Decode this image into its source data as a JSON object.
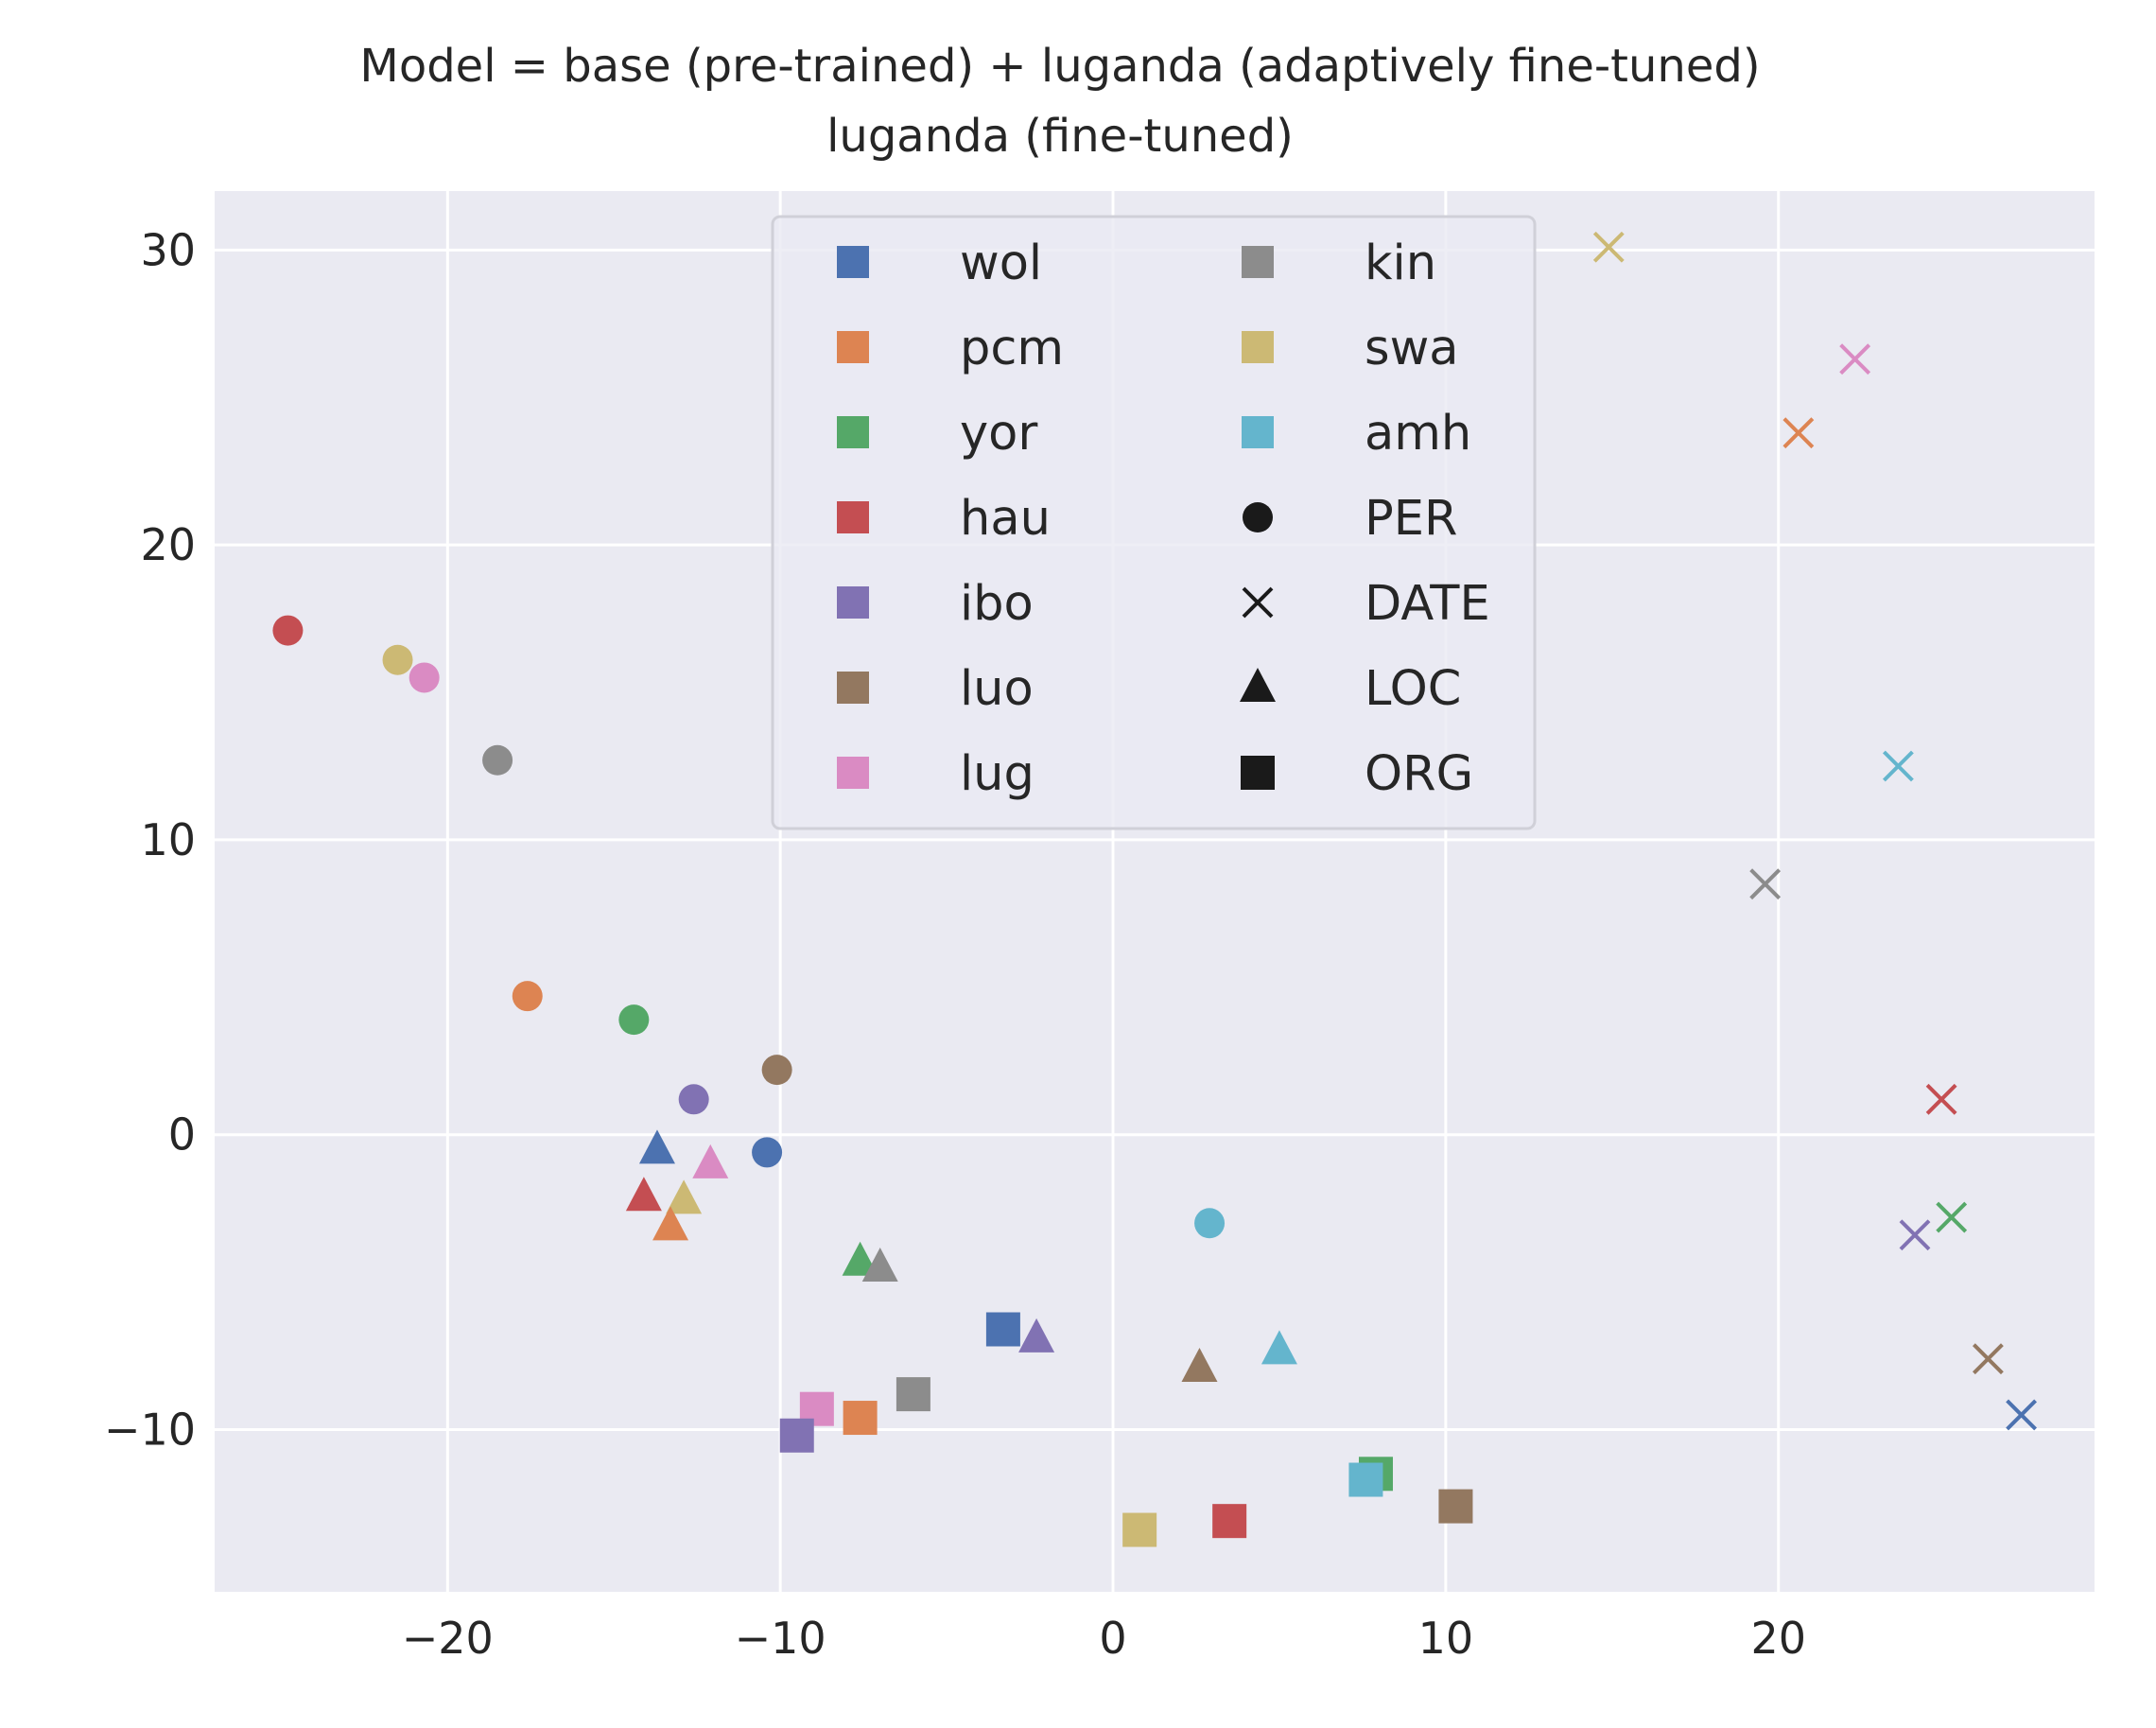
{
  "chart_data": {
    "type": "scatter",
    "title": "Model = base (pre-trained) + luganda (adaptively fine-tuned)",
    "subtitle": "luganda (fine-tuned)",
    "xlabel": "",
    "ylabel": "",
    "xlim": [
      -27,
      29.5
    ],
    "ylim": [
      -15.5,
      32
    ],
    "xticks": [
      -20,
      -10,
      0,
      10,
      20
    ],
    "yticks": [
      -10,
      0,
      10,
      20,
      30
    ],
    "grid": true,
    "legend_position": "top-center",
    "colors": {
      "wol": "#4c72b0",
      "pcm": "#dd8452",
      "yor": "#55a868",
      "hau": "#c44e52",
      "ibo": "#8172b3",
      "luo": "#937860",
      "lug": "#da8bc3",
      "kin": "#8c8c8c",
      "swa": "#ccb974",
      "amh": "#64b5cd"
    },
    "legend": [
      {
        "label": "wol",
        "kind": "lang",
        "key": "wol"
      },
      {
        "label": "pcm",
        "kind": "lang",
        "key": "pcm"
      },
      {
        "label": "yor",
        "kind": "lang",
        "key": "yor"
      },
      {
        "label": "hau",
        "kind": "lang",
        "key": "hau"
      },
      {
        "label": "ibo",
        "kind": "lang",
        "key": "ibo"
      },
      {
        "label": "luo",
        "kind": "lang",
        "key": "luo"
      },
      {
        "label": "lug",
        "kind": "lang",
        "key": "lug"
      },
      {
        "label": "kin",
        "kind": "lang",
        "key": "kin"
      },
      {
        "label": "swa",
        "kind": "lang",
        "key": "swa"
      },
      {
        "label": "amh",
        "kind": "lang",
        "key": "amh"
      },
      {
        "label": "PER",
        "kind": "marker",
        "key": "circle"
      },
      {
        "label": "DATE",
        "kind": "marker",
        "key": "x"
      },
      {
        "label": "LOC",
        "kind": "marker",
        "key": "triangle"
      },
      {
        "label": "ORG",
        "kind": "marker",
        "key": "square"
      }
    ],
    "points": [
      {
        "lang": "hau",
        "ent": "PER",
        "x": -24.8,
        "y": 17.1
      },
      {
        "lang": "swa",
        "ent": "PER",
        "x": -21.5,
        "y": 16.1
      },
      {
        "lang": "lug",
        "ent": "PER",
        "x": -20.7,
        "y": 15.5
      },
      {
        "lang": "kin",
        "ent": "PER",
        "x": -18.5,
        "y": 12.7
      },
      {
        "lang": "pcm",
        "ent": "PER",
        "x": -17.6,
        "y": 4.7
      },
      {
        "lang": "yor",
        "ent": "PER",
        "x": -14.4,
        "y": 3.9
      },
      {
        "lang": "ibo",
        "ent": "PER",
        "x": -12.6,
        "y": 1.2
      },
      {
        "lang": "luo",
        "ent": "PER",
        "x": -10.1,
        "y": 2.2
      },
      {
        "lang": "wol",
        "ent": "PER",
        "x": -10.4,
        "y": -0.6
      },
      {
        "lang": "amh",
        "ent": "PER",
        "x": 2.9,
        "y": -3.0
      },
      {
        "lang": "swa",
        "ent": "DATE",
        "x": 14.9,
        "y": 30.1
      },
      {
        "lang": "lug",
        "ent": "DATE",
        "x": 22.3,
        "y": 26.3
      },
      {
        "lang": "pcm",
        "ent": "DATE",
        "x": 20.6,
        "y": 23.8
      },
      {
        "lang": "amh",
        "ent": "DATE",
        "x": 23.6,
        "y": 12.5
      },
      {
        "lang": "kin",
        "ent": "DATE",
        "x": 19.6,
        "y": 8.5
      },
      {
        "lang": "hau",
        "ent": "DATE",
        "x": 24.9,
        "y": 1.2
      },
      {
        "lang": "yor",
        "ent": "DATE",
        "x": 25.2,
        "y": -2.8
      },
      {
        "lang": "ibo",
        "ent": "DATE",
        "x": 24.1,
        "y": -3.4
      },
      {
        "lang": "luo",
        "ent": "DATE",
        "x": 26.3,
        "y": -7.6
      },
      {
        "lang": "wol",
        "ent": "DATE",
        "x": 27.3,
        "y": -9.5
      },
      {
        "lang": "wol",
        "ent": "LOC",
        "x": -13.7,
        "y": -0.5
      },
      {
        "lang": "lug",
        "ent": "LOC",
        "x": -12.1,
        "y": -1.0
      },
      {
        "lang": "hau",
        "ent": "LOC",
        "x": -14.1,
        "y": -2.1
      },
      {
        "lang": "swa",
        "ent": "LOC",
        "x": -12.9,
        "y": -2.2
      },
      {
        "lang": "pcm",
        "ent": "LOC",
        "x": -13.3,
        "y": -3.1
      },
      {
        "lang": "yor",
        "ent": "LOC",
        "x": -7.6,
        "y": -4.3
      },
      {
        "lang": "kin",
        "ent": "LOC",
        "x": -7.0,
        "y": -4.5
      },
      {
        "lang": "ibo",
        "ent": "LOC",
        "x": -2.3,
        "y": -6.9
      },
      {
        "lang": "luo",
        "ent": "LOC",
        "x": 2.6,
        "y": -7.9
      },
      {
        "lang": "amh",
        "ent": "LOC",
        "x": 5.0,
        "y": -7.3
      },
      {
        "lang": "wol",
        "ent": "ORG",
        "x": -3.3,
        "y": -6.6
      },
      {
        "lang": "kin",
        "ent": "ORG",
        "x": -6.0,
        "y": -8.8
      },
      {
        "lang": "lug",
        "ent": "ORG",
        "x": -8.9,
        "y": -9.3
      },
      {
        "lang": "pcm",
        "ent": "ORG",
        "x": -7.6,
        "y": -9.6
      },
      {
        "lang": "ibo",
        "ent": "ORG",
        "x": -9.5,
        "y": -10.2
      },
      {
        "lang": "yor",
        "ent": "ORG",
        "x": 7.9,
        "y": -11.5
      },
      {
        "lang": "amh",
        "ent": "ORG",
        "x": 7.6,
        "y": -11.7
      },
      {
        "lang": "luo",
        "ent": "ORG",
        "x": 10.3,
        "y": -12.6
      },
      {
        "lang": "hau",
        "ent": "ORG",
        "x": 3.5,
        "y": -13.1
      },
      {
        "lang": "swa",
        "ent": "ORG",
        "x": 0.8,
        "y": -13.4
      }
    ]
  }
}
